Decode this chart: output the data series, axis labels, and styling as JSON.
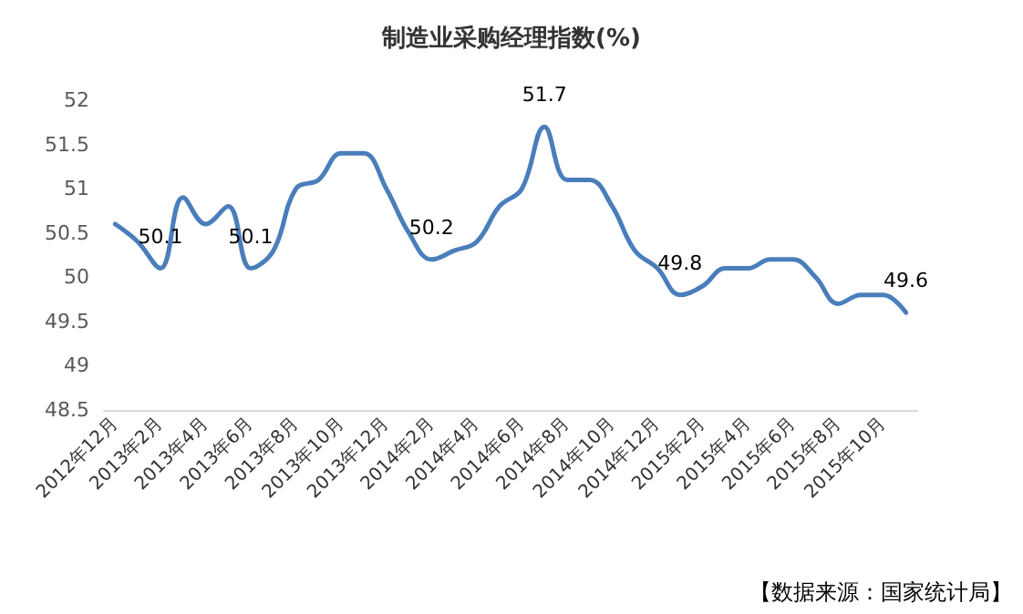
{
  "chart_data": {
    "type": "line",
    "title": "制造业采购经理指数(%)",
    "categories": [
      "2012年12月",
      null,
      "2013年2月",
      null,
      "2013年4月",
      null,
      "2013年6月",
      null,
      "2013年8月",
      null,
      "2013年10月",
      null,
      "2013年12月",
      null,
      "2014年2月",
      null,
      "2014年4月",
      null,
      "2014年6月",
      null,
      "2014年8月",
      null,
      "2014年10月",
      null,
      "2014年12月",
      null,
      "2015年2月",
      null,
      "2015年4月",
      null,
      "2015年6月",
      null,
      "2015年8月",
      null,
      "2015年10月",
      null
    ],
    "series": [
      {
        "color": "#4a7ebb",
        "values": [
          50.6,
          50.4,
          50.1,
          50.9,
          50.6,
          50.8,
          50.1,
          50.3,
          51.0,
          51.1,
          51.4,
          51.4,
          51.0,
          50.5,
          50.2,
          50.3,
          50.4,
          50.8,
          51.0,
          51.7,
          51.1,
          51.1,
          50.8,
          50.3,
          50.1,
          49.8,
          49.9,
          50.1,
          50.1,
          50.2,
          50.2,
          50.0,
          49.7,
          49.8,
          49.8,
          49.6
        ],
        "value_labels": [
          null,
          null,
          "50.1",
          null,
          null,
          null,
          "50.1",
          null,
          null,
          null,
          null,
          null,
          null,
          null,
          "50.2",
          null,
          null,
          null,
          null,
          "51.7",
          null,
          null,
          null,
          null,
          null,
          "49.8",
          null,
          null,
          null,
          null,
          null,
          null,
          null,
          null,
          null,
          "49.6"
        ]
      }
    ],
    "ylim": [
      48.5,
      52
    ],
    "yticks": [
      48.5,
      49,
      49.5,
      50,
      50.5,
      51,
      51.5,
      52
    ],
    "grid": false,
    "marker": "none",
    "line_style": "solid",
    "annotations": [
      "【数据来源：国家统计局】"
    ]
  }
}
